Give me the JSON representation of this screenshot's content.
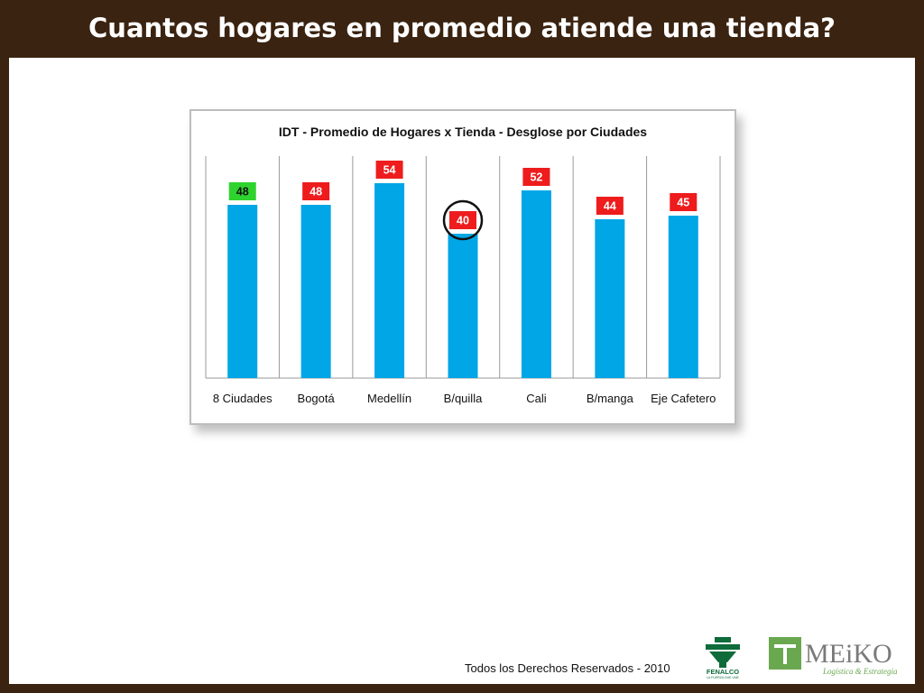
{
  "slide": {
    "title": "Cuantos hogares en promedio atiende una tienda?",
    "footer": "Todos los Derechos Reservados - 2010",
    "logos": {
      "fenalco": {
        "text": "FENALCO",
        "tagline": "LA FUERZA QUE UNE"
      },
      "meiko": {
        "text": "MEiKO",
        "tagline": "Logística & Estrategia"
      }
    }
  },
  "colors": {
    "background": "#3a2310",
    "bar": "#00a6e6",
    "label_highlight": "#2ed32e",
    "label_default": "#ee1c1c"
  },
  "chart_data": {
    "type": "bar",
    "title": "IDT - Promedio de Hogares x Tienda - Desglose por Ciudades",
    "categories": [
      "8 Ciudades",
      "Bogotá",
      "Medellín",
      "B/quilla",
      "Cali",
      "B/manga",
      "Eje Cafetero"
    ],
    "values": [
      48,
      48,
      54,
      40,
      52,
      44,
      45
    ],
    "highlighted_category": "8 Ciudades",
    "circled_category": "B/quilla",
    "ylim": [
      0,
      62
    ],
    "grid": false,
    "legend": "none"
  }
}
